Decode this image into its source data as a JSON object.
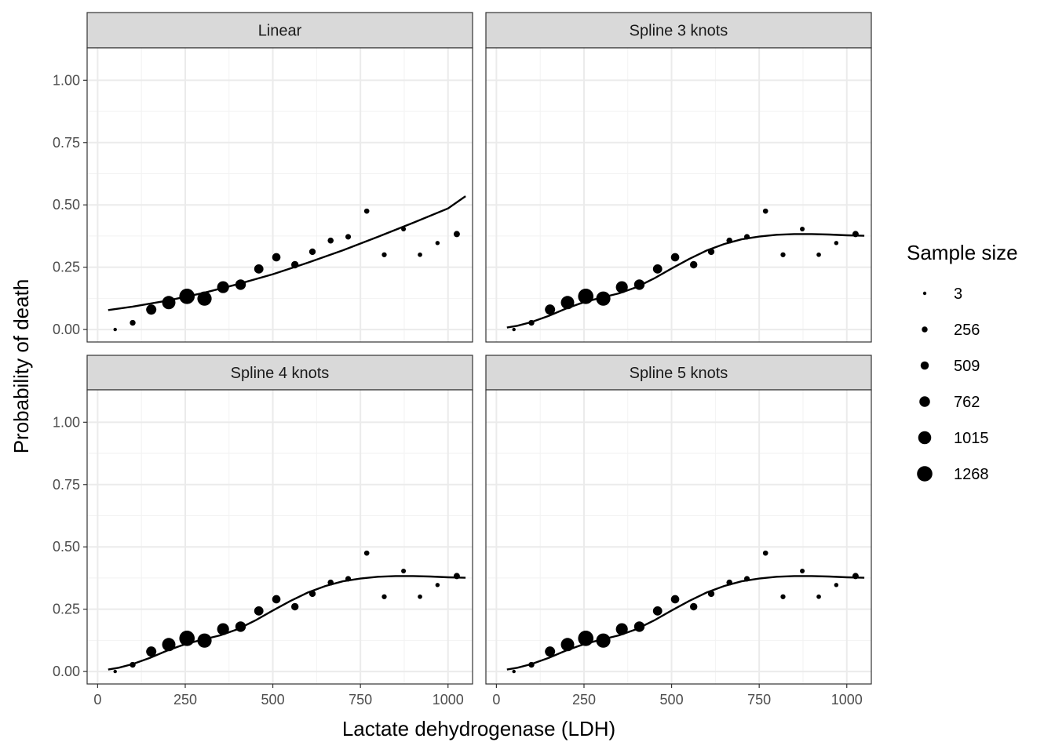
{
  "chart_data": {
    "type": "scatter",
    "xlabel": "Lactate dehydrogenase (LDH)",
    "ylabel": "Probability of death",
    "xlim": [
      -30,
      1070
    ],
    "ylim": [
      -0.05,
      1.13
    ],
    "x_ticks": [
      0,
      250,
      500,
      750,
      1000
    ],
    "x_tick_labels": [
      "0",
      "250",
      "500",
      "750",
      "1000"
    ],
    "y_ticks": [
      0,
      0.25,
      0.5,
      0.75,
      1.0
    ],
    "y_tick_labels": [
      "0.00",
      "0.25",
      "0.50",
      "0.75",
      "1.00"
    ],
    "grid": true,
    "legend": {
      "title": "Sample size",
      "position": "right",
      "entries": [
        {
          "label": "3",
          "value": 3
        },
        {
          "label": "256",
          "value": 256
        },
        {
          "label": "509",
          "value": 509
        },
        {
          "label": "762",
          "value": 762
        },
        {
          "label": "1015",
          "value": 1015
        },
        {
          "label": "1268",
          "value": 1268
        }
      ]
    },
    "points": [
      {
        "x": 50,
        "y": 0.0,
        "n": 3
      },
      {
        "x": 100,
        "y": 0.027,
        "n": 250
      },
      {
        "x": 153,
        "y": 0.08,
        "n": 720
      },
      {
        "x": 203,
        "y": 0.108,
        "n": 1050
      },
      {
        "x": 255,
        "y": 0.133,
        "n": 1268
      },
      {
        "x": 305,
        "y": 0.124,
        "n": 1150
      },
      {
        "x": 358,
        "y": 0.17,
        "n": 900
      },
      {
        "x": 408,
        "y": 0.18,
        "n": 750
      },
      {
        "x": 460,
        "y": 0.243,
        "n": 620
      },
      {
        "x": 510,
        "y": 0.29,
        "n": 520
      },
      {
        "x": 563,
        "y": 0.26,
        "n": 420
      },
      {
        "x": 613,
        "y": 0.312,
        "n": 330
      },
      {
        "x": 665,
        "y": 0.357,
        "n": 270
      },
      {
        "x": 715,
        "y": 0.372,
        "n": 230
      },
      {
        "x": 768,
        "y": 0.475,
        "n": 190
      },
      {
        "x": 818,
        "y": 0.3,
        "n": 160
      },
      {
        "x": 873,
        "y": 0.403,
        "n": 140
      },
      {
        "x": 920,
        "y": 0.3,
        "n": 110
      },
      {
        "x": 970,
        "y": 0.347,
        "n": 90
      },
      {
        "x": 1025,
        "y": 0.383,
        "n": 300
      }
    ],
    "panels": [
      {
        "title": "Linear",
        "fit": {
          "x": [
            30,
            100,
            200,
            300,
            400,
            500,
            600,
            700,
            800,
            900,
            1000,
            1050
          ],
          "y": [
            0.078,
            0.092,
            0.116,
            0.146,
            0.182,
            0.222,
            0.268,
            0.318,
            0.372,
            0.428,
            0.486,
            0.535
          ]
        }
      },
      {
        "title": "Spline 3 knots",
        "fit": {
          "x": [
            30,
            60,
            100,
            150,
            200,
            250,
            300,
            350,
            400,
            450,
            500,
            550,
            600,
            650,
            700,
            750,
            800,
            850,
            900,
            950,
            1000,
            1050
          ],
          "y": [
            0.008,
            0.015,
            0.03,
            0.055,
            0.085,
            0.11,
            0.128,
            0.145,
            0.17,
            0.205,
            0.245,
            0.283,
            0.317,
            0.343,
            0.362,
            0.373,
            0.38,
            0.383,
            0.383,
            0.381,
            0.378,
            0.376
          ]
        }
      },
      {
        "title": "Spline 4 knots",
        "fit": {
          "x": [
            30,
            60,
            100,
            150,
            200,
            250,
            300,
            350,
            400,
            450,
            500,
            550,
            600,
            650,
            700,
            750,
            800,
            850,
            900,
            950,
            1000,
            1050
          ],
          "y": [
            0.008,
            0.015,
            0.03,
            0.055,
            0.085,
            0.11,
            0.128,
            0.145,
            0.17,
            0.205,
            0.245,
            0.283,
            0.317,
            0.343,
            0.362,
            0.373,
            0.38,
            0.383,
            0.383,
            0.381,
            0.378,
            0.376
          ]
        }
      },
      {
        "title": "Spline 5 knots",
        "fit": {
          "x": [
            30,
            60,
            100,
            150,
            200,
            250,
            300,
            350,
            400,
            450,
            500,
            550,
            600,
            650,
            700,
            750,
            800,
            850,
            900,
            950,
            1000,
            1050
          ],
          "y": [
            0.008,
            0.015,
            0.03,
            0.055,
            0.085,
            0.11,
            0.128,
            0.145,
            0.17,
            0.205,
            0.245,
            0.283,
            0.317,
            0.343,
            0.362,
            0.373,
            0.38,
            0.383,
            0.383,
            0.381,
            0.378,
            0.376
          ]
        }
      }
    ]
  }
}
